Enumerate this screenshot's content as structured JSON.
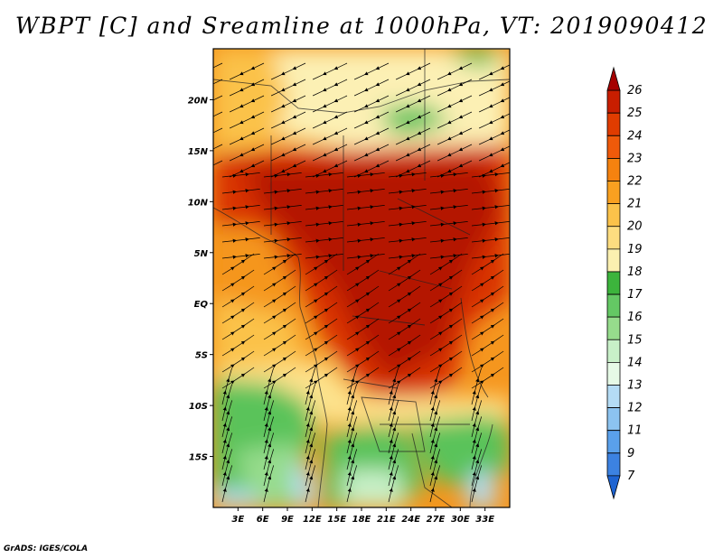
{
  "title": "WBPT [C] and Sreamline at 1000hPa, VT: 2019090412",
  "credit": "GrADS: IGES/COLA",
  "map": {
    "lon_range": [
      0,
      36
    ],
    "lat_range": [
      -20,
      25
    ],
    "lon_ticks": [
      "3E",
      "6E",
      "9E",
      "12E",
      "15E",
      "18E",
      "21E",
      "24E",
      "27E",
      "30E",
      "33E"
    ],
    "lat_ticks": [
      "20N",
      "15N",
      "10N",
      "5N",
      "EQ",
      "5S",
      "10S",
      "15S"
    ]
  },
  "colorbar": {
    "labels": [
      "26",
      "25",
      "24",
      "23",
      "22",
      "21",
      "20",
      "19",
      "18",
      "17",
      "16",
      "15",
      "14",
      "13",
      "12",
      "11",
      "9",
      "7"
    ],
    "colors": [
      "#a50000",
      "#c81e00",
      "#e03c00",
      "#ef5a0a",
      "#f5820f",
      "#f9a020",
      "#fbc24a",
      "#fddd80",
      "#fbf0b0",
      "#3cb43c",
      "#64c864",
      "#96dc8c",
      "#c8f0c8",
      "#e6fae6",
      "#b4dcf5",
      "#8cc3f0",
      "#5aa0eb",
      "#3c82e1",
      "#1e64d2"
    ]
  },
  "field_colors": {
    "deep_red": "#b41400",
    "red": "#d83200",
    "orange_red": "#ec5a0a",
    "orange": "#f5961e",
    "light_orange": "#fbc24a",
    "yellow": "#fde28c",
    "pale_yellow": "#fcf0b4",
    "green": "#5ac35a",
    "light_green": "#96dc8c",
    "pale_green": "#c8f0c8",
    "light_blue": "#b4dcf5"
  }
}
